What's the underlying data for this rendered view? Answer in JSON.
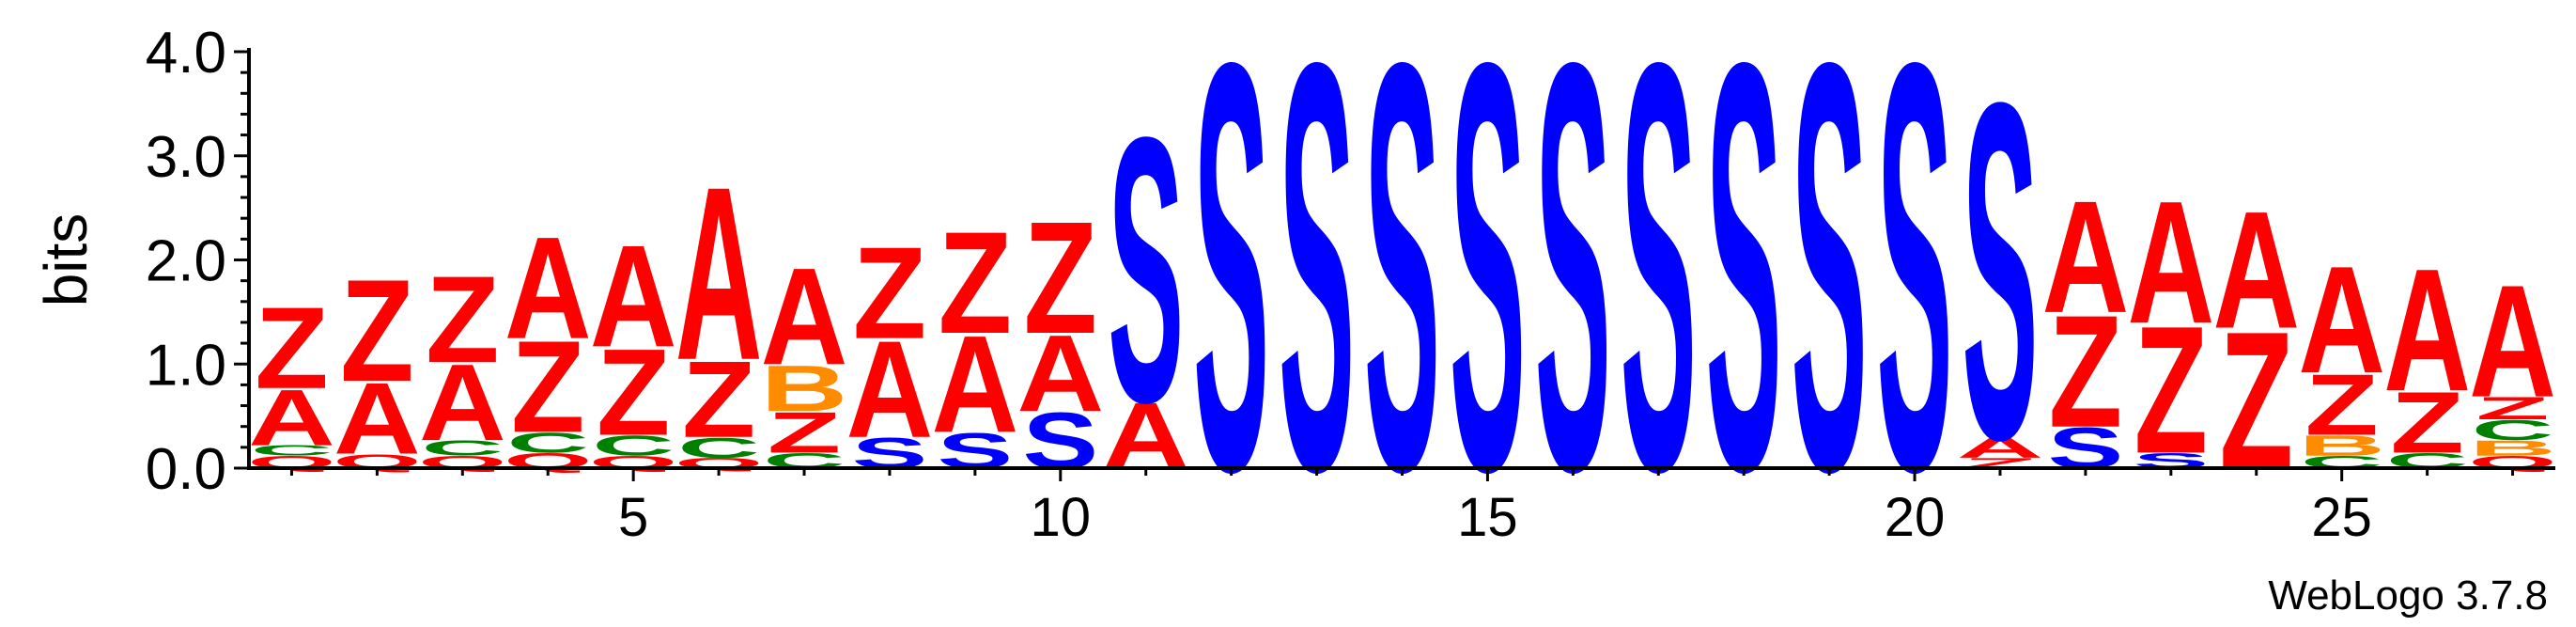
{
  "chart_data": {
    "type": "sequence-logo",
    "ylabel": "bits",
    "ylim": [
      0,
      4.0
    ],
    "y_ticks": [
      "0.0",
      "1.0",
      "2.0",
      "3.0",
      "4.0"
    ],
    "y_tick_values": [
      0,
      1,
      2,
      3,
      4
    ],
    "x_ticks": [
      "5",
      "10",
      "15",
      "20",
      "25"
    ],
    "x_tick_values": [
      5,
      10,
      15,
      20,
      25
    ],
    "positions": 27,
    "footer": "WebLogo 3.7.8",
    "colors": {
      "Z": "#ff0000",
      "A": "#ff0000",
      "S": "#0000ff",
      "C": "#008000",
      "B": "#ff8c00",
      "P": "#800080",
      "R": "#ff0000",
      "T": "#800080",
      "Q": "#ff0000"
    },
    "stacks": [
      [
        [
          "Q",
          0.12
        ],
        [
          "C",
          0.1
        ],
        [
          "A",
          0.55
        ],
        [
          "Z",
          0.8
        ]
      ],
      [
        [
          "Q",
          0.14
        ],
        [
          "A",
          0.7
        ],
        [
          "Z",
          1.0
        ]
      ],
      [
        [
          "Q",
          0.12
        ],
        [
          "C",
          0.15
        ],
        [
          "A",
          0.75
        ],
        [
          "Z",
          0.85
        ]
      ],
      [
        [
          "Q",
          0.15
        ],
        [
          "C",
          0.2
        ],
        [
          "Z",
          0.9
        ],
        [
          "A",
          1.0
        ]
      ],
      [
        [
          "Q",
          0.12
        ],
        [
          "C",
          0.2
        ],
        [
          "Z",
          0.85
        ],
        [
          "A",
          1.0
        ]
      ],
      [
        [
          "Q",
          0.1
        ],
        [
          "C",
          0.2
        ],
        [
          "Z",
          0.75
        ],
        [
          "A",
          1.7
        ]
      ],
      [
        [
          "C",
          0.15
        ],
        [
          "Z",
          0.4
        ],
        [
          "B",
          0.45
        ],
        [
          "A",
          0.95
        ]
      ],
      [
        [
          "S",
          0.3
        ],
        [
          "A",
          0.95
        ],
        [
          "Z",
          0.9
        ]
      ],
      [
        [
          "S",
          0.35
        ],
        [
          "A",
          0.95
        ],
        [
          "Z",
          1.0
        ]
      ],
      [
        [
          "S",
          0.55
        ],
        [
          "A",
          0.75
        ],
        [
          "Z",
          1.1
        ]
      ],
      [
        [
          "A",
          0.65
        ],
        [
          "S",
          2.6
        ]
      ],
      [
        [
          "S",
          4.0
        ]
      ],
      [
        [
          "S",
          4.0
        ]
      ],
      [
        [
          "S",
          4.0
        ]
      ],
      [
        [
          "S",
          4.0
        ]
      ],
      [
        [
          "S",
          4.0
        ]
      ],
      [
        [
          "S",
          4.0
        ]
      ],
      [
        [
          "S",
          4.0
        ]
      ],
      [
        [
          "S",
          4.0
        ]
      ],
      [
        [
          "S",
          4.0
        ]
      ],
      [
        [
          "Z",
          0.1
        ],
        [
          "A",
          0.2
        ],
        [
          "S",
          3.3
        ]
      ],
      [
        [
          "S",
          0.4
        ],
        [
          "Z",
          1.1
        ],
        [
          "A",
          1.1
        ]
      ],
      [
        [
          "S",
          0.15
        ],
        [
          "Z",
          1.25
        ],
        [
          "A",
          1.2
        ]
      ],
      [
        [
          "Z",
          1.35
        ],
        [
          "A",
          1.15
        ]
      ],
      [
        [
          "C",
          0.12
        ],
        [
          "B",
          0.2
        ],
        [
          "Z",
          0.6
        ],
        [
          "A",
          1.05
        ]
      ],
      [
        [
          "C",
          0.15
        ],
        [
          "Z",
          0.6
        ],
        [
          "A",
          1.2
        ]
      ],
      [
        [
          "Q",
          0.12
        ],
        [
          "B",
          0.15
        ],
        [
          "C",
          0.2
        ],
        [
          "Z",
          0.22
        ],
        [
          "A",
          1.1
        ]
      ]
    ]
  }
}
